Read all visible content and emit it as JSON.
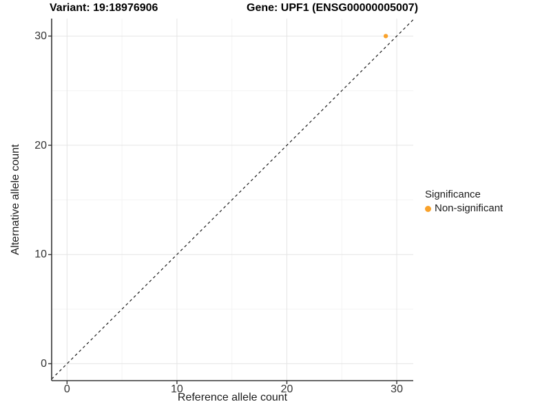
{
  "titles": {
    "variant": "Variant: 19:18976906",
    "gene": "Gene: UPF1 (ENSG00000005007)"
  },
  "axes": {
    "x": {
      "label": "Reference allele count",
      "ticks": [
        0,
        10,
        20,
        30
      ]
    },
    "y": {
      "label": "Alternative allele count",
      "ticks": [
        0,
        10,
        20,
        30
      ]
    }
  },
  "legend": {
    "title": "Significance",
    "items": [
      {
        "label": "Non-significant",
        "color": "#F9A22B"
      }
    ]
  },
  "chart_data": {
    "type": "scatter",
    "title": "Variant: 19:18976906    Gene: UPF1 (ENSG00000005007)",
    "xlabel": "Reference allele count",
    "ylabel": "Alternative allele count",
    "xlim": [
      -1.4,
      31.5
    ],
    "ylim": [
      -1.55,
      31.6
    ],
    "x_major_ticks": [
      0,
      10,
      20,
      30
    ],
    "y_major_ticks": [
      0,
      10,
      20,
      30
    ],
    "x_minor_ticks": [
      5,
      15,
      25
    ],
    "y_minor_ticks": [
      5,
      15,
      25
    ],
    "grid": true,
    "legend_position": "right",
    "series": [
      {
        "name": "Non-significant",
        "color": "#F9A22B",
        "points": [
          {
            "x": 29,
            "y": 30
          }
        ]
      }
    ],
    "reference_line": {
      "type": "identity",
      "style": "dashed",
      "color": "#1a1a1a"
    }
  },
  "colors": {
    "background": "#FFFFFF",
    "axis": "#333333",
    "grid_major": "#E4E4E4",
    "grid_minor": "#F3F3F3",
    "point": "#F9A22B"
  }
}
